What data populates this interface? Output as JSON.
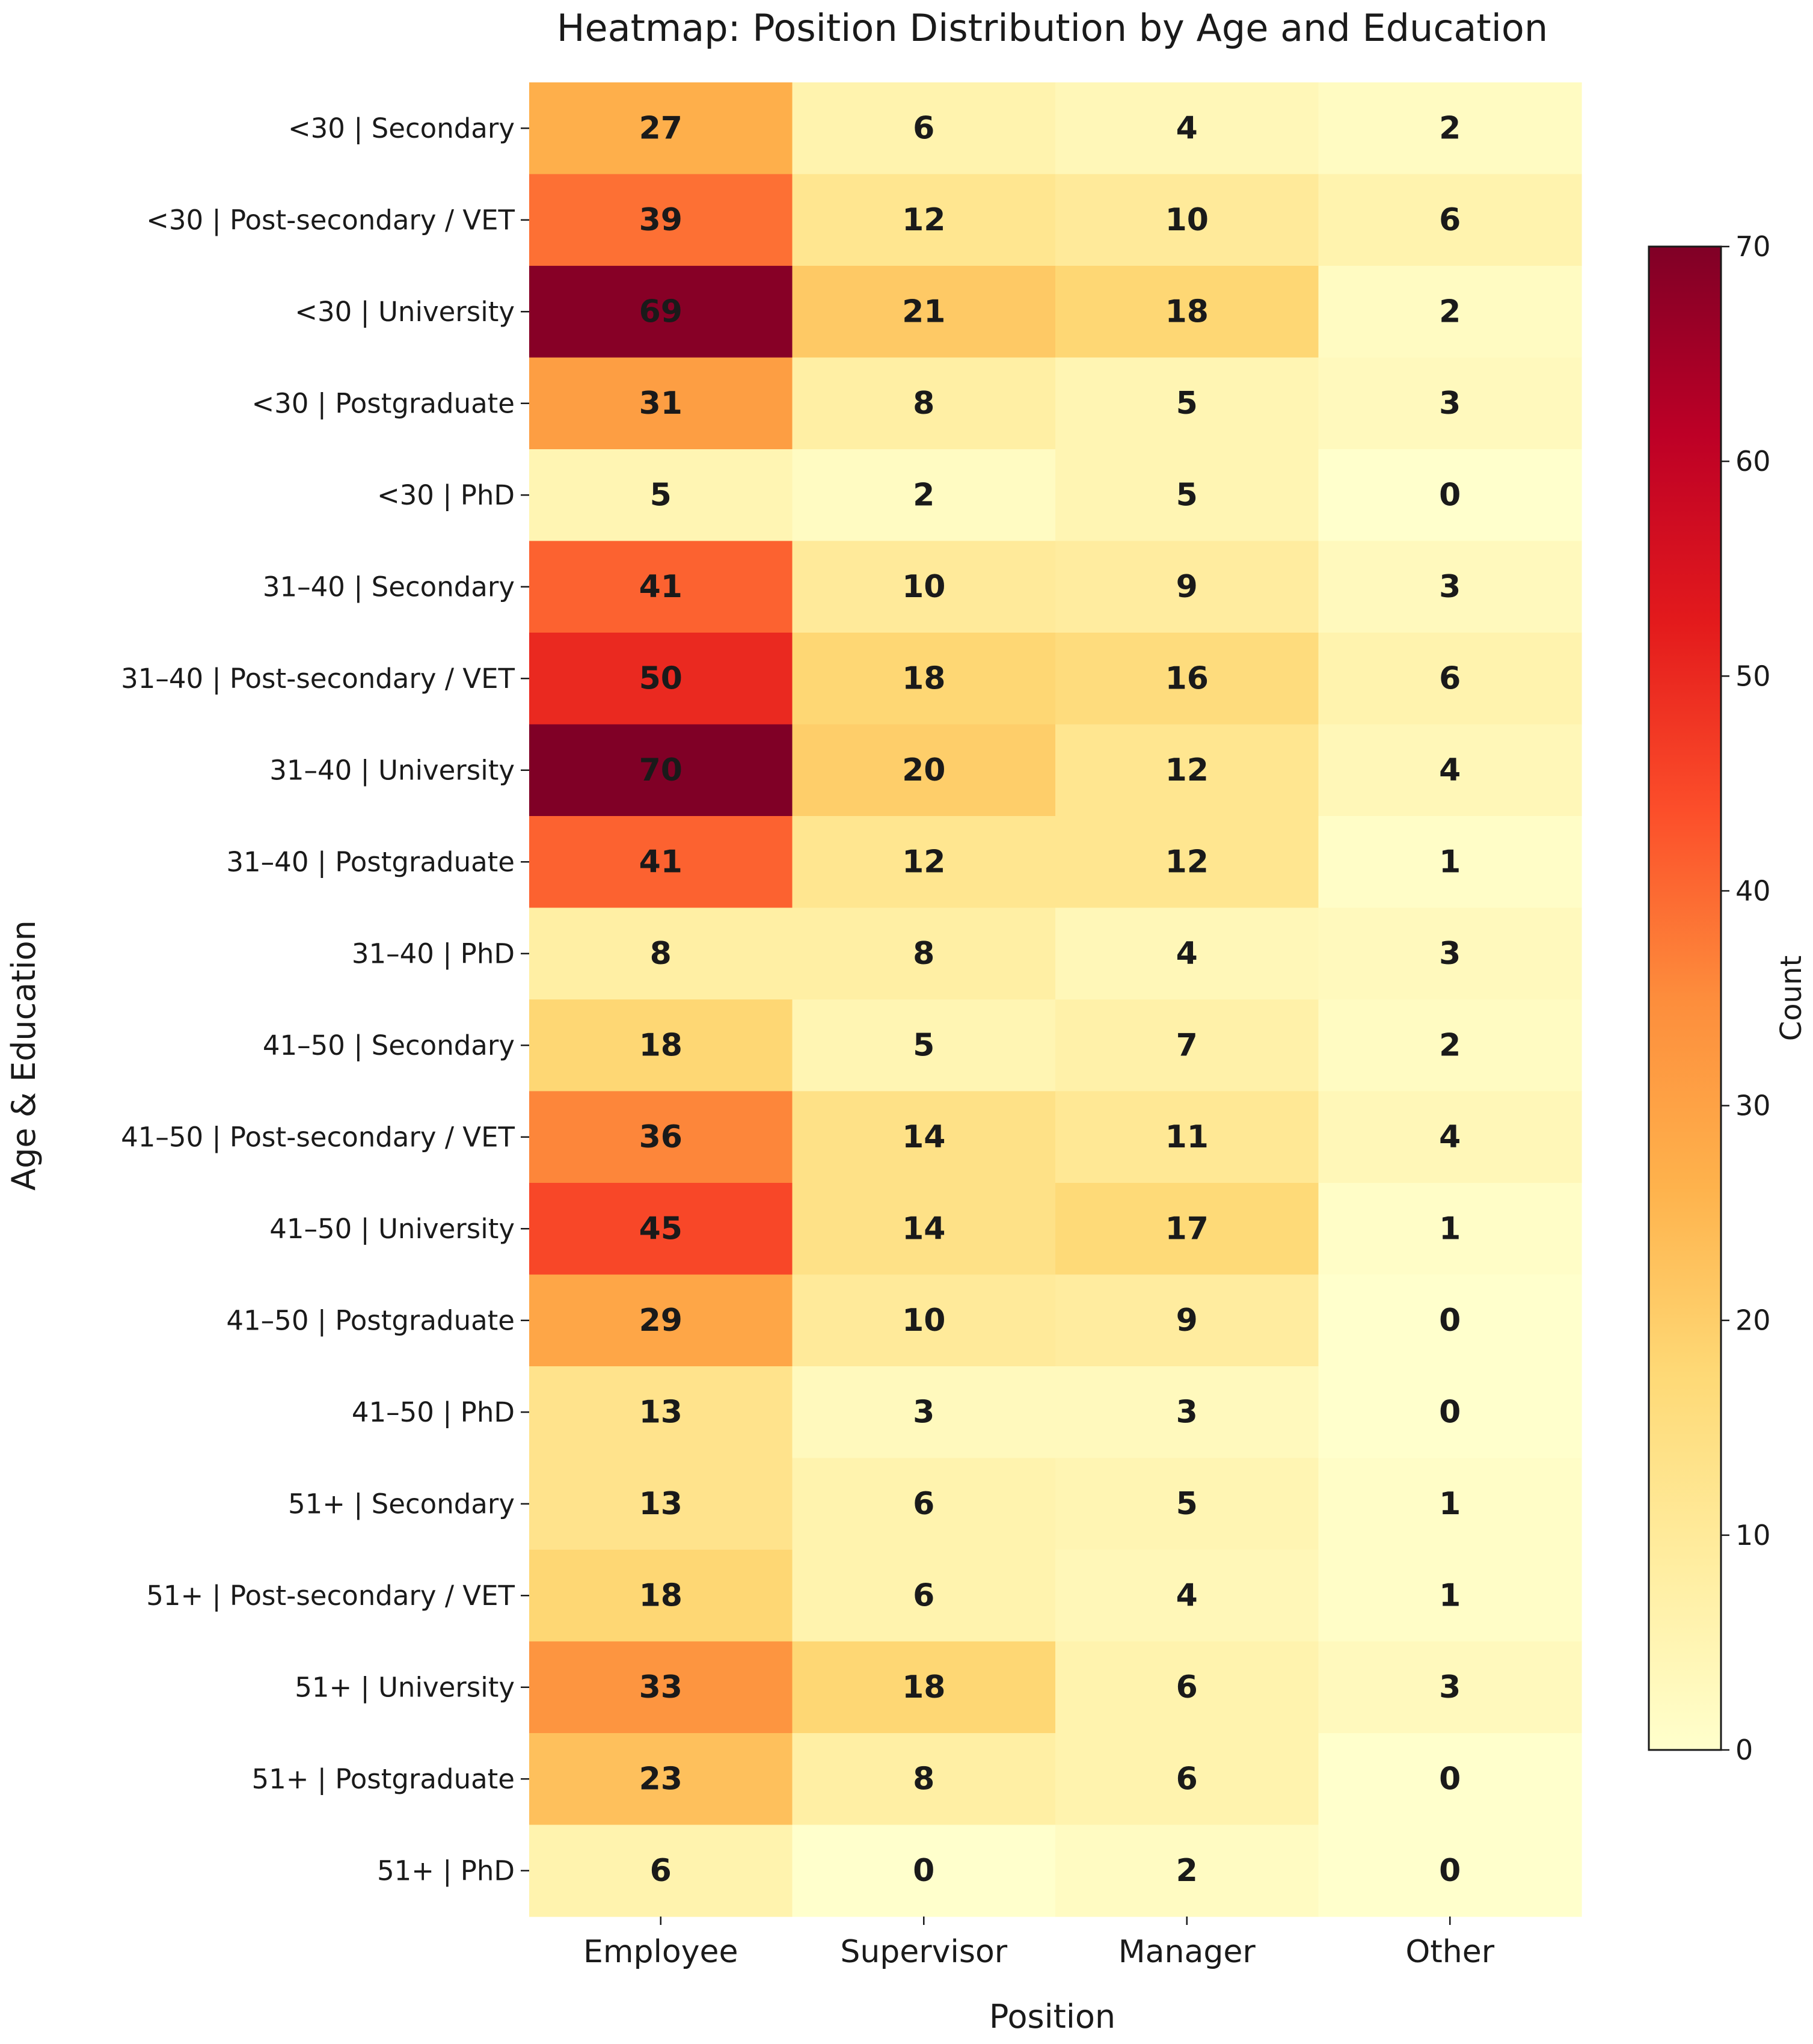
{
  "chart_data": {
    "type": "heatmap",
    "title": "Heatmap: Position Distribution by Age and Education",
    "xlabel": "Position",
    "ylabel": "Age & Education",
    "columns": [
      "Employee",
      "Supervisor",
      "Manager",
      "Other"
    ],
    "rows": [
      "<30 | Secondary",
      "<30 | Post-secondary / VET",
      "<30 | University",
      "<30 | Postgraduate",
      "<30 | PhD",
      "31–40 | Secondary",
      "31–40 | Post-secondary / VET",
      "31–40 | University",
      "31–40 | Postgraduate",
      "31–40 | PhD",
      "41–50 | Secondary",
      "41–50 | Post-secondary / VET",
      "41–50 | University",
      "41–50 | Postgraduate",
      "41–50 | PhD",
      "51+ | Secondary",
      "51+ | Post-secondary / VET",
      "51+ | University",
      "51+ | Postgraduate",
      "51+ | PhD"
    ],
    "values": [
      [
        27,
        6,
        4,
        2
      ],
      [
        39,
        12,
        10,
        6
      ],
      [
        69,
        21,
        18,
        2
      ],
      [
        31,
        8,
        5,
        3
      ],
      [
        5,
        2,
        5,
        0
      ],
      [
        41,
        10,
        9,
        3
      ],
      [
        50,
        18,
        16,
        6
      ],
      [
        70,
        20,
        12,
        4
      ],
      [
        41,
        12,
        12,
        1
      ],
      [
        8,
        8,
        4,
        3
      ],
      [
        18,
        5,
        7,
        2
      ],
      [
        36,
        14,
        11,
        4
      ],
      [
        45,
        14,
        17,
        1
      ],
      [
        29,
        10,
        9,
        0
      ],
      [
        13,
        3,
        3,
        0
      ],
      [
        13,
        6,
        5,
        1
      ],
      [
        18,
        6,
        4,
        1
      ],
      [
        33,
        18,
        6,
        3
      ],
      [
        23,
        8,
        6,
        0
      ],
      [
        6,
        0,
        2,
        0
      ]
    ],
    "colorbar": {
      "label": "Count",
      "range": [
        0,
        70
      ],
      "ticks": [
        0,
        10,
        20,
        30,
        40,
        50,
        60,
        70
      ],
      "colormap": "YlOrRd",
      "colors": [
        "#ffffcc",
        "#ffeda0",
        "#fed976",
        "#feb24c",
        "#fd8d3c",
        "#fc4e2a",
        "#e31a1c",
        "#bd0026",
        "#800026"
      ]
    }
  }
}
